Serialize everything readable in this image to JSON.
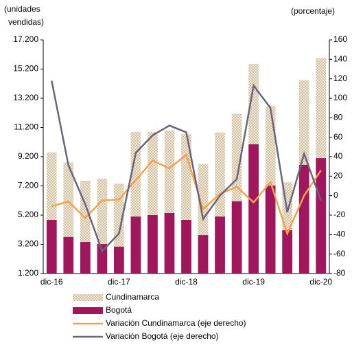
{
  "chart_data": {
    "type": "bar_line",
    "y_label": [
      "(unidades",
      "vendidas)"
    ],
    "y2_label": "(porcentaje)",
    "categories": [
      "dic-16",
      null,
      null,
      null,
      "dic-17",
      null,
      null,
      null,
      "dic-18",
      null,
      null,
      null,
      "dic-19",
      null,
      null,
      null,
      "dic-20"
    ],
    "ylim": [
      1200,
      17200
    ],
    "yticks": [
      {
        "value": 1200,
        "label": "1.200"
      },
      {
        "value": 3200,
        "label": "3.200"
      },
      {
        "value": 5200,
        "label": "5.200"
      },
      {
        "value": 7200,
        "label": "7.200"
      },
      {
        "value": 9200,
        "label": "9.200"
      },
      {
        "value": 11200,
        "label": "11.200"
      },
      {
        "value": 13200,
        "label": "13.200"
      },
      {
        "value": 15200,
        "label": "15.200"
      },
      {
        "value": 17200,
        "label": "17.200"
      }
    ],
    "y2lim": [
      -80,
      160
    ],
    "y2ticks": [
      -80,
      -60,
      -40,
      -20,
      0,
      20,
      40,
      60,
      80,
      100,
      120,
      140,
      160
    ],
    "series": [
      {
        "name": "Cundinamarca",
        "kind": "bar",
        "color": "#c9b793",
        "values": [
          9500,
          8800,
          7550,
          7700,
          7350,
          10900,
          10900,
          11000,
          10750,
          8700,
          10850,
          12150,
          15550,
          12650,
          7450,
          14450,
          15950
        ]
      },
      {
        "name": "Bogotá",
        "kind": "bar",
        "color": "#a0175e",
        "values": [
          4870,
          3700,
          3360,
          3220,
          3040,
          5100,
          5200,
          5340,
          4870,
          3830,
          5100,
          6140,
          10050,
          7220,
          4160,
          8640,
          9100
        ]
      },
      {
        "name": "Variación Cundinamarca (eje derecho)",
        "kind": "line",
        "axis": "y2",
        "color": "#f7a24a",
        "values": [
          -11,
          -6,
          -23,
          -5,
          -4,
          16,
          36,
          28,
          42,
          -14,
          2,
          9,
          -7,
          14,
          -39,
          0,
          26
        ]
      },
      {
        "name": "Variación Bogotá (eje derecho)",
        "kind": "line",
        "axis": "y2",
        "color": "#6b6478",
        "values": [
          118,
          31,
          -9,
          -57,
          -39,
          44,
          62,
          72,
          65,
          -24,
          0,
          17,
          113,
          90,
          -17,
          43,
          -5
        ]
      }
    ]
  }
}
